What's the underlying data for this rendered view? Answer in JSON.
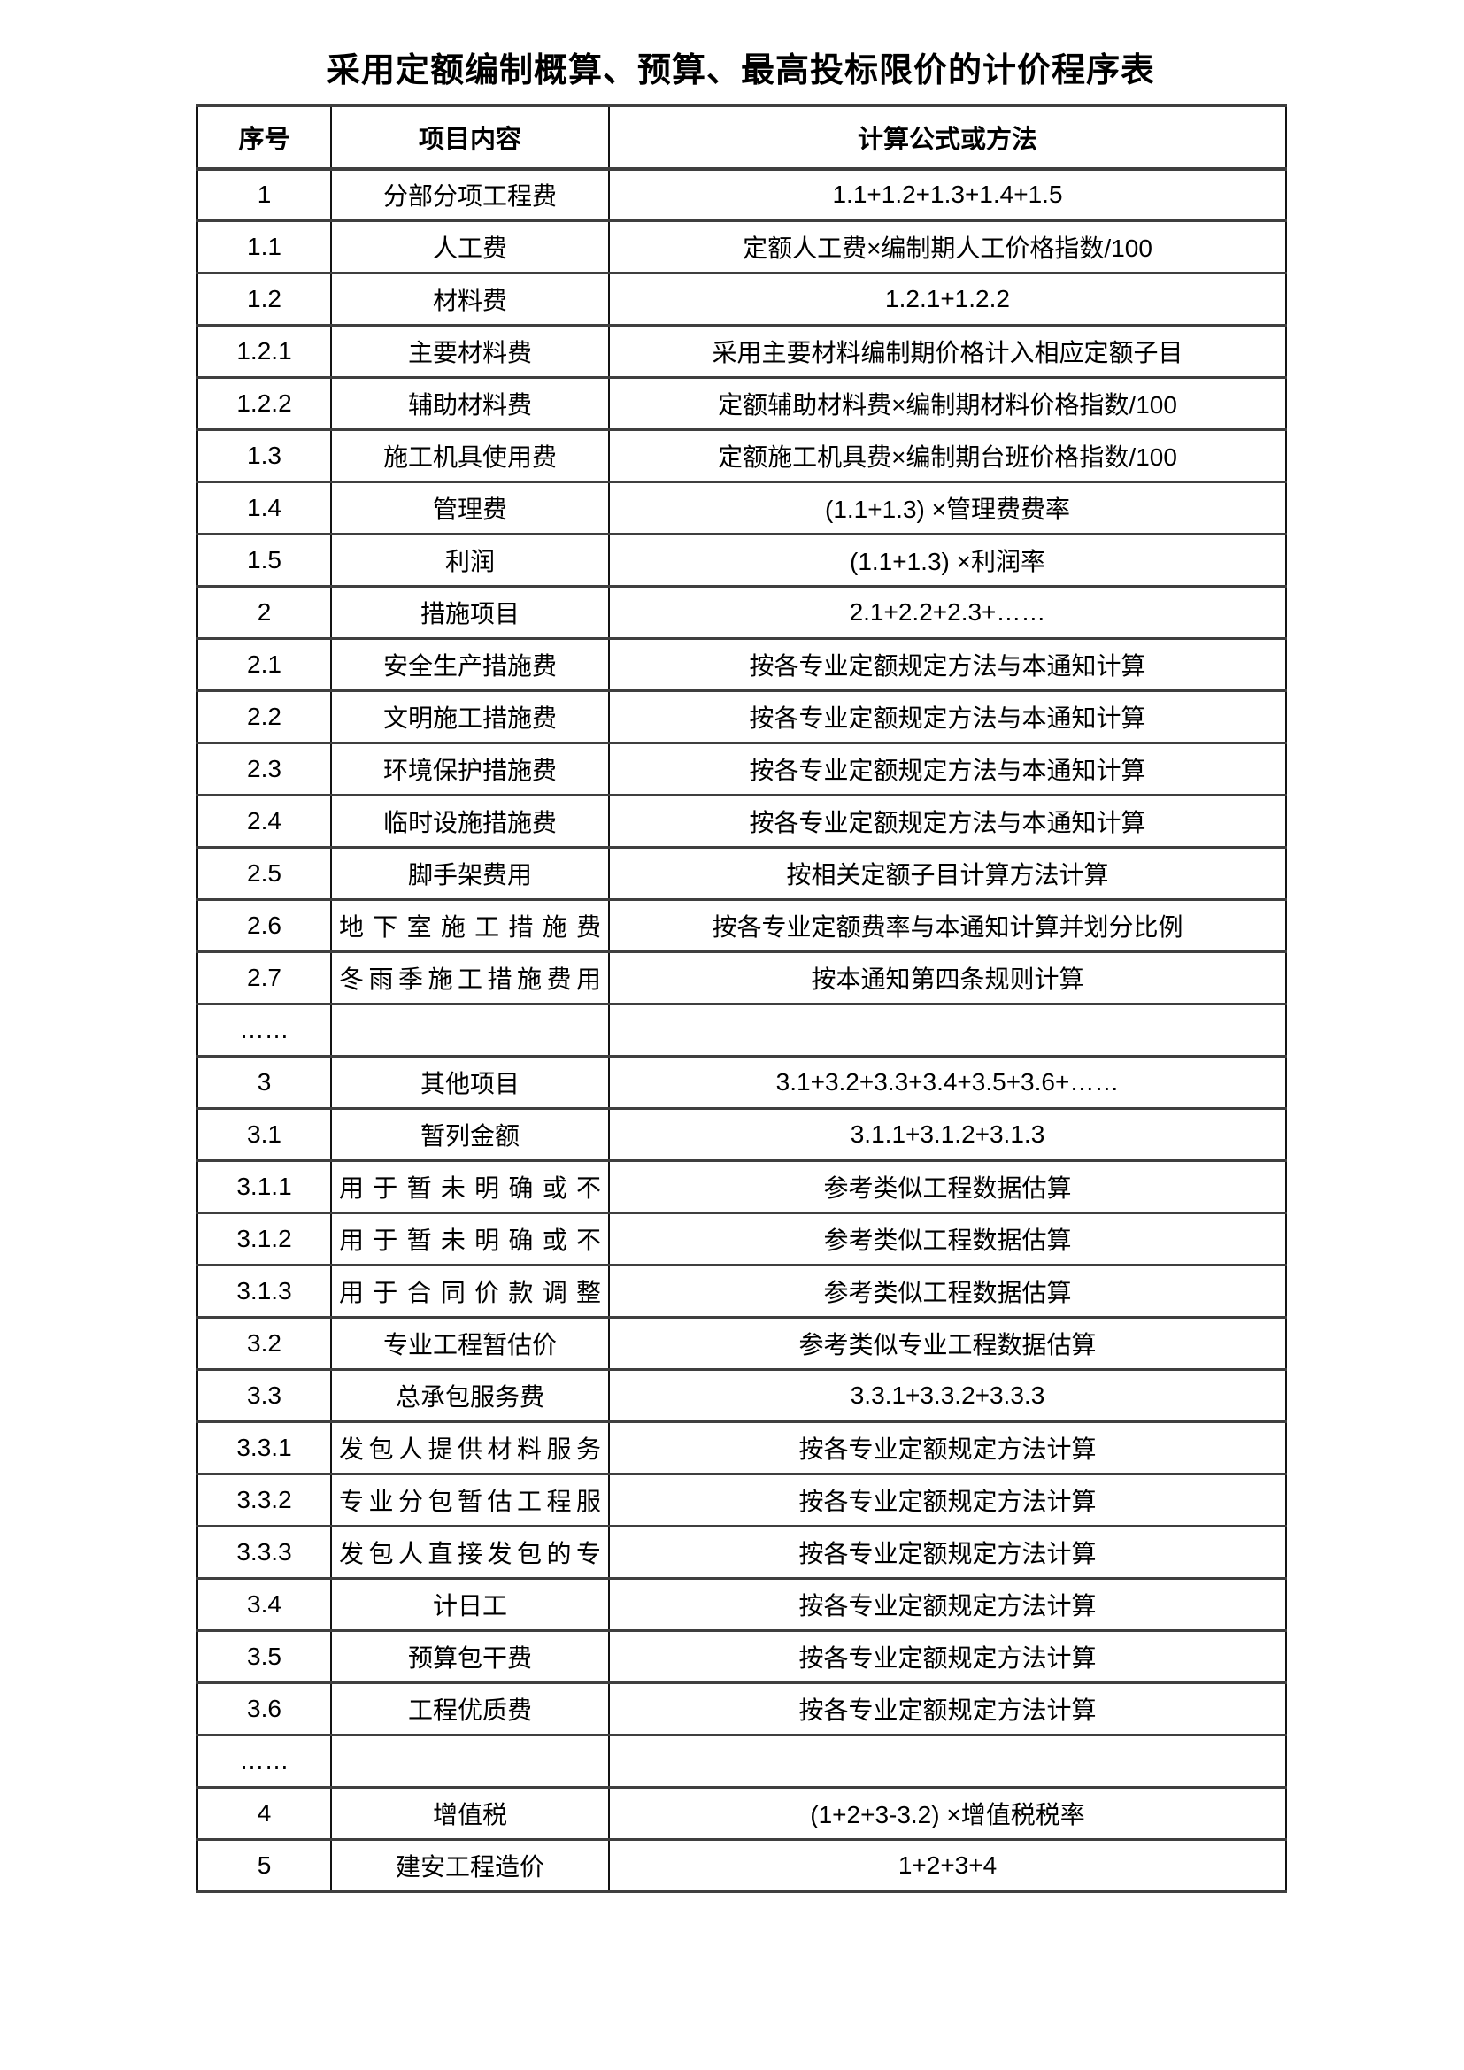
{
  "page": {
    "title": "采用定额编制概算、预算、最高投标限价的计价程序表"
  },
  "table": {
    "headers": [
      "序号",
      "项目内容",
      "计算公式或方法"
    ],
    "rows": [
      [
        "1",
        "分部分项工程费",
        "1.1+1.2+1.3+1.4+1.5"
      ],
      [
        "1.1",
        "人工费",
        "定额人工费×编制期人工价格指数/100"
      ],
      [
        "1.2",
        "材料费",
        "1.2.1+1.2.2"
      ],
      [
        "1.2.1",
        "主要材料费",
        "采用主要材料编制期价格计入相应定额子目"
      ],
      [
        "1.2.2",
        "辅助材料费",
        "定额辅助材料费×编制期材料价格指数/100"
      ],
      [
        "1.3",
        "施工机具使用费",
        "定额施工机具费×编制期台班价格指数/100"
      ],
      [
        "1.4",
        "管理费",
        "(1.1+1.3) ×管理费费率"
      ],
      [
        "1.5",
        "利润",
        "(1.1+1.3) ×利润率"
      ],
      [
        "2",
        "措施项目",
        "2.1+2.2+2.3+……"
      ],
      [
        "2.1",
        "安全生产措施费",
        "按各专业定额规定方法与本通知计算"
      ],
      [
        "2.2",
        "文明施工措施费",
        "按各专业定额规定方法与本通知计算"
      ],
      [
        "2.3",
        "环境保护措施费",
        "按各专业定额规定方法与本通知计算"
      ],
      [
        "2.4",
        "临时设施措施费",
        "按各专业定额规定方法与本通知计算"
      ],
      [
        "2.5",
        "脚手架费用",
        "按相关定额子目计算方法计算"
      ],
      [
        "2.6",
        "地下室施工措施费",
        "按各专业定额费率与本通知计算并划分比例"
      ],
      [
        "2.7",
        "冬雨季施工措施费用",
        "按本通知第四条规则计算"
      ],
      [
        "……",
        "",
        ""
      ],
      [
        "3",
        "其他项目",
        "3.1+3.2+3.3+3.4+3.5+3.6+……"
      ],
      [
        "3.1",
        "暂列金额",
        "3.1.1+3.1.2+3.1.3"
      ],
      [
        "3.1.1",
        "用于暂未明确或不",
        "参考类似工程数据估算"
      ],
      [
        "3.1.2",
        "用于暂未明确或不",
        "参考类似工程数据估算"
      ],
      [
        "3.1.3",
        "用于合同价款调整",
        "参考类似工程数据估算"
      ],
      [
        "3.2",
        "专业工程暂估价",
        "参考类似专业工程数据估算"
      ],
      [
        "3.3",
        "总承包服务费",
        "3.3.1+3.3.2+3.3.3"
      ],
      [
        "3.3.1",
        "发包人提供材料服务",
        "按各专业定额规定方法计算"
      ],
      [
        "3.3.2",
        "专业分包暂估工程服",
        "按各专业定额规定方法计算"
      ],
      [
        "3.3.3",
        "发包人直接发包的专",
        "按各专业定额规定方法计算"
      ],
      [
        "3.4",
        "计日工",
        "按各专业定额规定方法计算"
      ],
      [
        "3.5",
        "预算包干费",
        "按各专业定额规定方法计算"
      ],
      [
        "3.6",
        "工程优质费",
        "按各专业定额规定方法计算"
      ],
      [
        "……",
        "",
        ""
      ],
      [
        "4",
        "增值税",
        "(1+2+3-3.2) ×增值税税率"
      ],
      [
        "5",
        "建安工程造价",
        "1+2+3+4"
      ]
    ]
  }
}
